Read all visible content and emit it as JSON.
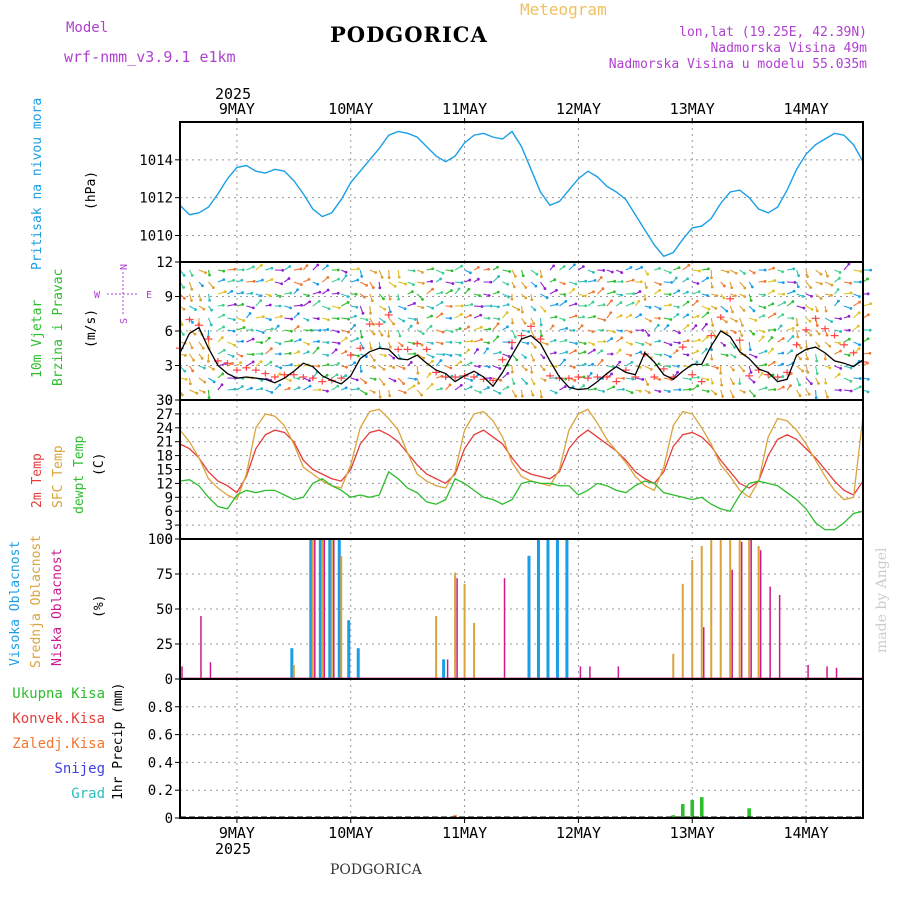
{
  "header": {
    "model_label": "Model",
    "model_value": "wrf-nmm_v3.9.1  e1km",
    "title": "PODGORICA",
    "subtitle": "Meteogram",
    "lonlat": "lon,lat (19.25E, 42.39N)",
    "elevation": "Nadmorska Visina 49m",
    "model_elevation": "Nadmorska Visina u modelu 55.035m",
    "footer_title": "PODGORICA",
    "watermark": "made by Angel",
    "year_top": "2025",
    "year_bottom": "2025"
  },
  "colors": {
    "pressure": "#1a9fe6",
    "wind_speed": "#000000",
    "wind_gust": "#ff4444",
    "temp2m": "#e63c3c",
    "sfctemp": "#d9a43c",
    "dewpoint": "#2dbd2d",
    "cloud_high": "#1a9fe6",
    "cloud_mid": "#d9a43c",
    "cloud_low": "#cc1a8c",
    "precip_total": "#2dbd2d",
    "precip_conv": "#e63c3c",
    "precip_frozen": "#f07830",
    "precip_snow": "#4040e0",
    "precip_graupel": "#2dbdbd",
    "model_label": "#b040d0",
    "info_text": "#b040d0",
    "subtitle": "#f0c060"
  },
  "chart_data": {
    "type": "meteogram",
    "x_axis": {
      "start": "2025-05-08T12:00",
      "end": "2025-05-14T12:00",
      "tick_labels": [
        "9MAY",
        "10MAY",
        "11MAY",
        "12MAY",
        "13MAY",
        "14MAY"
      ],
      "year_label": "2025"
    },
    "panels": [
      {
        "id": "pressure",
        "labels": [
          "Pritisak na nivou mora",
          "(hPa)"
        ],
        "ylim": [
          1008.6,
          1016.0
        ],
        "yticks": [
          1010,
          1012,
          1014
        ],
        "series": [
          {
            "name": "Pressure",
            "values": [
              1011.6,
              1011.1,
              1011.2,
              1011.5,
              1012.2,
              1013.0,
              1013.6,
              1013.7,
              1013.4,
              1013.3,
              1013.5,
              1013.4,
              1012.9,
              1012.2,
              1011.4,
              1011.0,
              1011.2,
              1011.9,
              1012.8,
              1013.4,
              1014.0,
              1014.6,
              1015.3,
              1015.5,
              1015.4,
              1015.2,
              1014.7,
              1014.2,
              1013.9,
              1014.2,
              1014.9,
              1015.3,
              1015.4,
              1015.2,
              1015.1,
              1015.5,
              1014.7,
              1013.5,
              1012.3,
              1011.6,
              1011.8,
              1012.4,
              1013.0,
              1013.4,
              1013.1,
              1012.6,
              1012.3,
              1011.9,
              1011.1,
              1010.3,
              1009.5,
              1008.9,
              1009.1,
              1009.8,
              1010.4,
              1010.5,
              1010.9,
              1011.7,
              1012.3,
              1012.4,
              1012.0,
              1011.4,
              1011.2,
              1011.5,
              1012.4,
              1013.5,
              1014.3,
              1014.8,
              1015.1,
              1015.4,
              1015.3,
              1014.8,
              1013.9
            ]
          }
        ]
      },
      {
        "id": "wind",
        "labels": [
          "10m Vjetar",
          "Brzina i Pravac",
          "(m/s)"
        ],
        "compass": [
          "N",
          "E",
          "S",
          "W"
        ],
        "ylim": [
          0,
          12
        ],
        "yticks": [
          0,
          3,
          6,
          9,
          12
        ],
        "series": [
          {
            "name": "Wind speed",
            "values": [
              4.1,
              5.8,
              6.3,
              4.5,
              3.0,
              2.3,
              1.9,
              2.0,
              1.9,
              1.8,
              1.5,
              1.9,
              2.5,
              3.2,
              2.9,
              2.1,
              1.7,
              1.4,
              2.1,
              3.6,
              4.2,
              4.5,
              4.4,
              3.6,
              3.5,
              3.9,
              3.2,
              2.6,
              2.3,
              1.6,
              2.1,
              2.5,
              2.0,
              1.2,
              2.4,
              3.9,
              5.3,
              5.6,
              4.9,
              3.4,
              2.0,
              1.1,
              0.9,
              1.0,
              1.6,
              2.3,
              2.9,
              2.4,
              2.2,
              4.1,
              3.3,
              2.2,
              1.8,
              2.5,
              3.1,
              3.1,
              4.7,
              6.0,
              5.5,
              4.2,
              3.6,
              2.7,
              2.4,
              1.6,
              1.8,
              3.9,
              4.4,
              4.6,
              4.1,
              3.4,
              3.2,
              2.9,
              3.5
            ]
          },
          {
            "name": "Wind gust",
            "values": [
              4.5,
              7.0,
              6.5,
              5.3,
              3.4,
              3.2,
              2.6,
              2.8,
              2.6,
              2.3,
              2.0,
              2.2,
              2.2,
              2.0,
              1.9,
              1.6,
              1.7,
              1.9,
              3.9,
              4.5,
              6.6,
              6.6,
              7.4,
              4.4,
              4.4,
              4.9,
              4.4,
              2.4,
              2.0,
              2.0,
              2.1,
              2.0,
              1.8,
              1.7,
              3.5,
              5.0,
              5.6,
              6.4,
              5.3,
              2.1,
              1.9,
              1.9,
              2.0,
              1.9,
              2.0,
              2.0,
              1.6,
              2.6,
              2.0,
              4.0,
              2.0,
              2.7,
              2.0,
              4.6,
              2.2,
              1.6,
              5.6,
              7.2,
              8.8,
              5.2,
              2.1,
              2.6,
              2.2,
              2.0,
              2.4,
              4.8,
              6.1,
              7.1,
              6.2,
              5.6,
              4.8,
              4.1,
              3.3
            ]
          }
        ]
      },
      {
        "id": "temperature",
        "labels": [
          "2m Temp",
          "SFC Temp",
          "dewpt Temp",
          "(C)"
        ],
        "ylim": [
          0,
          30
        ],
        "yticks": [
          0,
          3,
          6,
          9,
          12,
          15,
          18,
          21,
          24,
          27,
          30
        ],
        "series": [
          {
            "name": "2m Temp",
            "values": [
              20.5,
              19.5,
              17.5,
              14.5,
              12.5,
              11.5,
              10.0,
              13.5,
              19.5,
              22.5,
              23.5,
              23.0,
              21.0,
              17.0,
              15.0,
              14.0,
              13.0,
              12.5,
              15.0,
              20.5,
              23.0,
              23.5,
              22.5,
              21.0,
              18.5,
              16.0,
              14.0,
              13.0,
              12.0,
              14.0,
              19.5,
              22.5,
              23.5,
              22.0,
              20.5,
              17.5,
              15.0,
              14.0,
              13.5,
              13.0,
              14.5,
              19.5,
              22.0,
              23.5,
              22.0,
              20.5,
              19.0,
              17.0,
              14.5,
              13.0,
              12.0,
              14.5,
              20.0,
              22.5,
              23.0,
              22.0,
              20.0,
              17.0,
              14.5,
              12.0,
              11.0,
              12.5,
              18.0,
              21.5,
              22.5,
              21.5,
              19.5,
              17.5,
              15.0,
              12.5,
              10.5,
              9.5,
              12.5
            ]
          },
          {
            "name": "SFC Temp",
            "values": [
              23.5,
              21.0,
              17.5,
              13.0,
              11.0,
              9.5,
              8.5,
              14.0,
              24.0,
              27.0,
              26.5,
              24.5,
              20.5,
              15.5,
              14.0,
              12.5,
              11.5,
              11.0,
              16.0,
              24.0,
              27.5,
              28.0,
              26.0,
              23.5,
              18.5,
              14.0,
              12.5,
              11.5,
              11.0,
              14.5,
              23.5,
              27.0,
              27.5,
              25.5,
              22.0,
              16.5,
              13.5,
              12.5,
              12.0,
              11.5,
              15.0,
              23.5,
              27.0,
              28.0,
              25.0,
              21.5,
              19.0,
              16.5,
              13.5,
              11.5,
              10.5,
              15.5,
              24.5,
              27.5,
              27.0,
              24.0,
              20.5,
              16.0,
              13.5,
              10.5,
              9.0,
              12.5,
              22.0,
              26.0,
              25.5,
              23.5,
              20.5,
              17.0,
              13.5,
              10.5,
              8.5,
              9.0,
              26.5
            ]
          },
          {
            "name": "dewpt Temp",
            "values": [
              12.5,
              12.8,
              11.5,
              9.0,
              7.0,
              6.5,
              9.5,
              10.5,
              10.0,
              10.5,
              10.5,
              9.5,
              8.5,
              9.0,
              12.0,
              13.0,
              11.5,
              10.5,
              9.0,
              9.5,
              9.0,
              9.5,
              14.5,
              13.0,
              11.0,
              10.0,
              8.0,
              7.5,
              8.5,
              13.0,
              12.0,
              10.5,
              9.0,
              8.5,
              7.5,
              8.5,
              12.0,
              12.5,
              12.0,
              12.0,
              11.5,
              11.5,
              9.5,
              10.5,
              12.0,
              11.5,
              10.5,
              10.0,
              11.5,
              12.5,
              12.0,
              10.0,
              9.5,
              9.0,
              8.5,
              9.0,
              7.5,
              6.5,
              6.0,
              9.5,
              12.0,
              12.5,
              12.0,
              11.5,
              10.0,
              8.5,
              6.5,
              3.5,
              2.0,
              2.0,
              3.5,
              5.5,
              6.0
            ]
          }
        ]
      },
      {
        "id": "clouds",
        "labels": [
          "Visoka Oblacnost",
          "Srednja Oblacnost",
          "Niska Oblacnost",
          "(%)"
        ],
        "ylim": [
          0,
          100
        ],
        "yticks": [
          0,
          25,
          50,
          75,
          100
        ],
        "series": [
          {
            "name": "Visoka Oblacnost",
            "values": [
              0,
              0,
              0,
              0,
              0,
              0,
              0,
              0,
              0,
              0,
              0,
              0,
              22,
              0,
              100,
              100,
              100,
              100,
              42,
              22,
              0,
              0,
              0,
              0,
              0,
              0,
              0,
              0,
              14,
              0,
              0,
              0,
              0,
              0,
              0,
              0,
              0,
              88,
              100,
              100,
              100,
              100,
              0,
              0,
              0,
              0,
              0,
              0,
              0,
              0,
              0,
              0,
              0,
              0,
              0,
              0,
              0,
              0,
              0,
              0,
              0,
              0,
              0,
              0,
              0,
              0,
              0,
              0,
              0,
              0,
              0,
              0,
              0
            ]
          },
          {
            "name": "Srednja Oblacnost",
            "values": [
              0,
              0,
              0,
              0,
              0,
              0,
              0,
              0,
              0,
              0,
              0,
              0,
              10,
              0,
              100,
              100,
              100,
              88,
              0,
              0,
              0,
              0,
              0,
              0,
              0,
              0,
              0,
              45,
              0,
              76,
              68,
              40,
              0,
              0,
              0,
              0,
              0,
              0,
              0,
              0,
              0,
              0,
              0,
              0,
              0,
              0,
              0,
              0,
              0,
              0,
              0,
              0,
              18,
              68,
              85,
              95,
              100,
              100,
              100,
              100,
              100,
              95,
              0,
              0,
              0,
              0,
              0,
              0,
              0,
              0,
              0,
              0,
              0
            ]
          },
          {
            "name": "Niska Oblacnost",
            "values": [
              9,
              0,
              45,
              12,
              0,
              0,
              0,
              0,
              0,
              0,
              0,
              0,
              0,
              0,
              100,
              100,
              100,
              0,
              0,
              0,
              0,
              0,
              0,
              0,
              0,
              0,
              0,
              0,
              14,
              72,
              0,
              0,
              0,
              0,
              72,
              0,
              0,
              0,
              0,
              0,
              0,
              0,
              9,
              9,
              0,
              0,
              9,
              0,
              0,
              0,
              0,
              0,
              0,
              0,
              0,
              37,
              0,
              0,
              78,
              98,
              100,
              92,
              66,
              60,
              0,
              0,
              10,
              0,
              9,
              8,
              0,
              0,
              0
            ]
          }
        ]
      },
      {
        "id": "precip",
        "labels": [
          "1hr Precip (mm)"
        ],
        "legend": [
          "Ukupna Kisa",
          "Konvek.Kisa",
          "Zaledj.Kisa",
          "Snijeg",
          "Grad"
        ],
        "ylim": [
          0,
          1.0
        ],
        "yticks": [
          0,
          0.2,
          0.4,
          0.6,
          0.8
        ],
        "series": [
          {
            "name": "Ukupna Kisa",
            "values": [
              0,
              0,
              0,
              0,
              0,
              0,
              0,
              0,
              0,
              0,
              0,
              0,
              0,
              0,
              0,
              0,
              0,
              0,
              0,
              0,
              0,
              0,
              0,
              0,
              0,
              0,
              0,
              0,
              0,
              0,
              0,
              0,
              0,
              0,
              0,
              0,
              0,
              0,
              0,
              0,
              0,
              0,
              0,
              0,
              0,
              0,
              0,
              0,
              0,
              0,
              0,
              0,
              0.02,
              0.1,
              0.13,
              0.15,
              0,
              0,
              0,
              0,
              0.07,
              0,
              0,
              0,
              0,
              0,
              0,
              0,
              0,
              0,
              0,
              0,
              0
            ]
          },
          {
            "name": "Zaledj.Kisa",
            "values": [
              0,
              0,
              0,
              0,
              0,
              0,
              0,
              0,
              0,
              0,
              0,
              0,
              0,
              0,
              0,
              0,
              0,
              0,
              0,
              0,
              0,
              0,
              0,
              0,
              0,
              0,
              0,
              0,
              0,
              0.02,
              0,
              0,
              0,
              0,
              0,
              0,
              0,
              0,
              0,
              0,
              0,
              0,
              0,
              0,
              0,
              0,
              0,
              0,
              0,
              0,
              0,
              0,
              0,
              0,
              0,
              0,
              0,
              0,
              0,
              0,
              0,
              0,
              0,
              0,
              0,
              0,
              0,
              0,
              0,
              0,
              0,
              0,
              0
            ]
          }
        ]
      }
    ]
  }
}
